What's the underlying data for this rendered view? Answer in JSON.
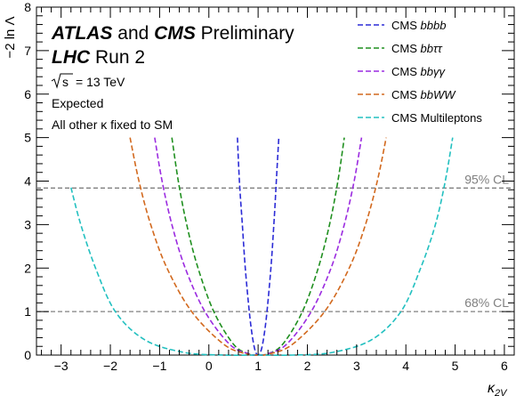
{
  "chart_data": {
    "type": "line",
    "xlabel": "κ",
    "xlabel_sub": "2V",
    "ylabel": "−2 ln Λ",
    "xlim": [
      -3.5,
      6.2
    ],
    "ylim": [
      0,
      8
    ],
    "xticks": [
      -3,
      -2,
      -1,
      0,
      1,
      2,
      3,
      4,
      5,
      6
    ],
    "yticks": [
      0,
      1,
      2,
      3,
      4,
      5,
      6,
      7,
      8
    ],
    "grid": false,
    "legend_position": "top-right",
    "annotations": {
      "atlas": "ATLAS",
      "and": " and ",
      "cms": "CMS",
      "preliminary": " Preliminary",
      "lhc": "LHC",
      "run": " Run 2",
      "energy": "= 13 TeV",
      "expected": "Expected",
      "other_kappa": "All other κ fixed to SM"
    },
    "reference_lines": [
      {
        "label": "95% CL",
        "y": 3.84,
        "color": "#808080"
      },
      {
        "label": "68% CL",
        "y": 1.0,
        "color": "#808080"
      }
    ],
    "series": [
      {
        "name": "CMS bbbb",
        "color": "#2b2bd6",
        "min_x": 1.0,
        "min_y": 0.0,
        "points": [
          [
            0.58,
            5.0
          ],
          [
            0.62,
            4.0
          ],
          [
            0.68,
            3.0
          ],
          [
            0.74,
            2.0
          ],
          [
            0.82,
            1.0
          ],
          [
            0.88,
            0.45
          ],
          [
            0.94,
            0.1
          ],
          [
            1.0,
            0.0
          ],
          [
            1.06,
            0.1
          ],
          [
            1.12,
            0.45
          ],
          [
            1.18,
            1.0
          ],
          [
            1.26,
            2.0
          ],
          [
            1.32,
            3.0
          ],
          [
            1.37,
            4.0
          ],
          [
            1.42,
            5.0
          ]
        ]
      },
      {
        "name": "CMS bbττ",
        "color": "#1f8f1f",
        "min_x": 1.0,
        "min_y": 0.0,
        "points": [
          [
            -0.75,
            5.0
          ],
          [
            -0.62,
            4.0
          ],
          [
            -0.45,
            3.0
          ],
          [
            -0.22,
            2.0
          ],
          [
            0.1,
            1.0
          ],
          [
            0.5,
            0.25
          ],
          [
            0.8,
            0.03
          ],
          [
            1.0,
            0.0
          ],
          [
            1.2,
            0.03
          ],
          [
            1.5,
            0.25
          ],
          [
            1.9,
            1.0
          ],
          [
            2.22,
            2.0
          ],
          [
            2.45,
            3.0
          ],
          [
            2.62,
            4.0
          ],
          [
            2.75,
            5.0
          ]
        ]
      },
      {
        "name": "CMS bbγγ",
        "color": "#9b2be0",
        "min_x": 1.0,
        "min_y": 0.0,
        "points": [
          [
            -1.1,
            5.0
          ],
          [
            -0.95,
            4.0
          ],
          [
            -0.75,
            3.0
          ],
          [
            -0.48,
            2.0
          ],
          [
            -0.08,
            1.0
          ],
          [
            0.42,
            0.25
          ],
          [
            0.8,
            0.03
          ],
          [
            1.0,
            0.0
          ],
          [
            1.2,
            0.03
          ],
          [
            1.58,
            0.25
          ],
          [
            2.08,
            1.0
          ],
          [
            2.48,
            2.0
          ],
          [
            2.75,
            3.0
          ],
          [
            2.95,
            4.0
          ],
          [
            3.1,
            5.0
          ]
        ]
      },
      {
        "name": "CMS bbWW",
        "color": "#d2691e",
        "min_x": 1.0,
        "min_y": 0.0,
        "points": [
          [
            -1.6,
            5.0
          ],
          [
            -1.42,
            4.0
          ],
          [
            -1.18,
            3.0
          ],
          [
            -0.85,
            2.0
          ],
          [
            -0.35,
            1.0
          ],
          [
            0.3,
            0.25
          ],
          [
            0.75,
            0.03
          ],
          [
            1.0,
            0.0
          ],
          [
            1.25,
            0.03
          ],
          [
            1.7,
            0.25
          ],
          [
            2.35,
            1.0
          ],
          [
            2.85,
            2.0
          ],
          [
            3.18,
            3.0
          ],
          [
            3.42,
            4.0
          ],
          [
            3.6,
            5.0
          ]
        ]
      },
      {
        "name": "CMS Multileptons",
        "color": "#22c0c0",
        "min_x": 1.0,
        "min_y": 0.0,
        "points": [
          [
            -2.8,
            3.85
          ],
          [
            -2.6,
            3.0
          ],
          [
            -2.3,
            2.0
          ],
          [
            -1.9,
            1.0
          ],
          [
            -1.3,
            0.35
          ],
          [
            -0.5,
            0.06
          ],
          [
            0.3,
            0.0
          ],
          [
            1.0,
            0.0
          ],
          [
            1.7,
            0.0
          ],
          [
            2.5,
            0.06
          ],
          [
            3.3,
            0.35
          ],
          [
            3.9,
            1.0
          ],
          [
            4.3,
            2.0
          ],
          [
            4.6,
            3.0
          ],
          [
            4.8,
            4.0
          ],
          [
            4.95,
            5.0
          ]
        ]
      }
    ]
  }
}
